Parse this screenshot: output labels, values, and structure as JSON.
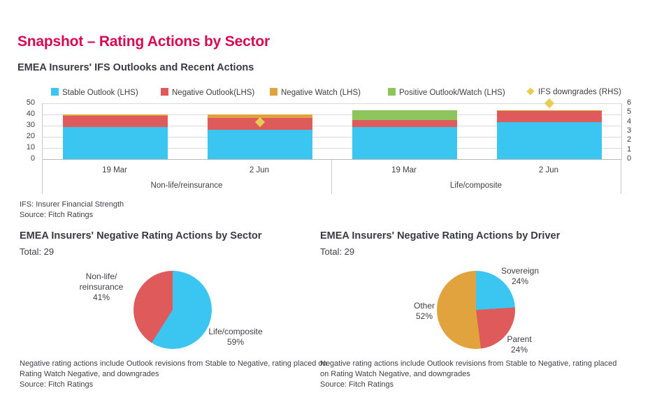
{
  "page": {
    "title": "Snapshot – Rating Actions by Sector",
    "subtitle": "EMEA Insurers' IFS Outlooks and Recent Actions"
  },
  "bar_section": {
    "footnote": "IFS: Insurer Financial Strength",
    "source": "Source: Fitch Ratings"
  },
  "pie_sector": {
    "labels": {
      "nonlife_line1": "Non-life/",
      "nonlife_line2": "reinsurance",
      "life": "Life/composite"
    },
    "note_line1": "Negative rating actions include Outlook revisions from Stable to Negative, rating placed on",
    "note_line2": "Rating Watch Negative, and downgrades",
    "source": "Source: Fitch Ratings"
  },
  "pie_driver": {
    "note_line1": "Negative rating actions include Outlook revisions from Stable to Negative, rating placed",
    "note_line2": "on Rating Watch Negative, and downgrades",
    "source": "Source: Fitch Ratings"
  },
  "colors": {
    "title_accent": "#d60a51",
    "stable": "#3bc5f1",
    "negative": "#df5b5b",
    "watch": "#e0a33e",
    "positive": "#8dc45b",
    "downgrade": "#e8cd55"
  },
  "chart_data": [
    {
      "type": "bar",
      "stacked": true,
      "title": "EMEA Insurers' IFS Outlooks and Recent Actions",
      "groups": [
        "Non-life/reinsurance",
        "Life/composite"
      ],
      "categories": [
        "19 Mar",
        "2 Jun",
        "19 Mar",
        "2 Jun"
      ],
      "series": [
        {
          "name": "Stable Outlook (LHS)",
          "color": "#3bc5f1",
          "values": [
            29,
            26,
            29,
            33
          ]
        },
        {
          "name": "Negative Outlook(LHS)",
          "color": "#df5b5b",
          "values": [
            10,
            11,
            6,
            10
          ]
        },
        {
          "name": "Negative Watch (LHS)",
          "color": "#e0a33e",
          "values": [
            1,
            3,
            0,
            1
          ]
        },
        {
          "name": "Positive Outlook/Watch (LHS)",
          "color": "#8dc45b",
          "values": [
            0,
            0,
            9,
            0
          ]
        }
      ],
      "markers": {
        "name": "IFS downgrades (RHS)",
        "color": "#e8cd55",
        "axis": "right",
        "values": [
          null,
          4,
          null,
          6
        ]
      },
      "left_axis": {
        "ticks": [
          0,
          10,
          20,
          30,
          40,
          50
        ],
        "max": 50
      },
      "right_axis": {
        "ticks": [
          0,
          1,
          2,
          3,
          4,
          5,
          6
        ],
        "max": 6
      },
      "grid": true,
      "legend_position": "top"
    },
    {
      "type": "pie",
      "title": "EMEA Insurers' Negative Rating Actions by Sector",
      "total_label": "Total: 29",
      "total": 29,
      "slices": [
        {
          "label": "Life/composite",
          "pct": 59,
          "pct_label": "59%",
          "color": "#3bc5f1"
        },
        {
          "label": "Non-life/reinsurance",
          "pct": 41,
          "pct_label": "41%",
          "color": "#df5b5b"
        }
      ]
    },
    {
      "type": "pie",
      "title": "EMEA Insurers' Negative Rating Actions by Driver",
      "total_label": "Total: 29",
      "total": 29,
      "slices": [
        {
          "label": "Sovereign",
          "pct": 24,
          "pct_label": "24%",
          "color": "#3bc5f1"
        },
        {
          "label": "Parent",
          "pct": 24,
          "pct_label": "24%",
          "color": "#df5b5b"
        },
        {
          "label": "Other",
          "pct": 52,
          "pct_label": "52%",
          "color": "#e0a33e"
        }
      ]
    }
  ]
}
